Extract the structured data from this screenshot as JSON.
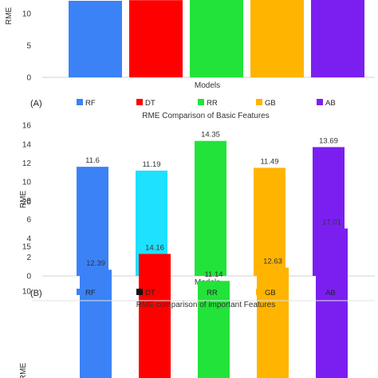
{
  "chart_data": [
    {
      "type": "bar",
      "panel": "",
      "title": "",
      "xlabel": "Models",
      "ylabel": "RME",
      "ylim": [
        0,
        15
      ],
      "yticks": [
        0,
        5,
        10
      ],
      "categories": [
        "RF",
        "DT",
        "RR",
        "GB",
        "AB"
      ],
      "values": [
        12.0,
        12.1,
        13.5,
        12.3,
        13.5
      ],
      "colors": [
        "#3b82f6",
        "#ff0000",
        "#22e33a",
        "#ffb400",
        "#7b1ff0"
      ],
      "show_values": false,
      "legend": {
        "position": "bottom",
        "entries": []
      }
    },
    {
      "type": "bar",
      "panel": "(A)",
      "title": "RME Comparison of Basic Features",
      "xlabel": "Models",
      "ylabel": "RME",
      "ylim": [
        0,
        16
      ],
      "yticks": [
        0,
        2,
        4,
        6,
        8,
        10,
        12,
        14,
        16
      ],
      "categories": [
        "RF",
        "DT",
        "RR",
        "GB",
        "AB"
      ],
      "values": [
        11.6,
        11.19,
        14.35,
        11.49,
        13.69
      ],
      "value_labels": [
        "11.6",
        "11.19",
        "14.35",
        "11.49",
        "13.69"
      ],
      "colors": [
        "#3b82f6",
        "#1ee0ff",
        "#22e33a",
        "#ffb400",
        "#7b1ff0"
      ],
      "show_values": true,
      "legend": {
        "position": "top",
        "entries": [
          {
            "name": "RF",
            "color": "#3b82f6"
          },
          {
            "name": "DT",
            "color": "#ff0000"
          },
          {
            "name": "RR",
            "color": "#22e33a"
          },
          {
            "name": "GB",
            "color": "#ffb400"
          },
          {
            "name": "AB",
            "color": "#7b1ff0"
          }
        ]
      }
    },
    {
      "type": "bar",
      "panel": "(B)",
      "title": "RME comparison of important Features",
      "xlabel": "",
      "ylabel": "RME",
      "ylim": [
        0,
        20
      ],
      "yticks": [
        10,
        15,
        20
      ],
      "categories": [
        "RF",
        "DT",
        "RR",
        "GB",
        "AB"
      ],
      "values": [
        12.39,
        14.16,
        11.14,
        12.63,
        17.01
      ],
      "value_labels": [
        "12.39",
        "14.16",
        "11.14",
        "12.63",
        "17.01"
      ],
      "colors": [
        "#3b82f6",
        "#ff0000",
        "#22e33a",
        "#ffb400",
        "#7b1ff0"
      ],
      "show_values": true,
      "legend": {
        "position": "top",
        "entries": [
          {
            "name": "RF",
            "color": "#3b82f6"
          },
          {
            "name": "DT",
            "color": "#111111"
          },
          {
            "name": "RR",
            "color": "#22e33a"
          },
          {
            "name": "GB",
            "color": "#ffb400"
          },
          {
            "name": "AB",
            "color": "#7b1ff0"
          }
        ]
      }
    }
  ]
}
